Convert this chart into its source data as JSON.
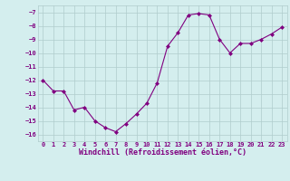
{
  "x": [
    0,
    1,
    2,
    3,
    4,
    5,
    6,
    7,
    8,
    9,
    10,
    11,
    12,
    13,
    14,
    15,
    16,
    17,
    18,
    19,
    20,
    21,
    22,
    23
  ],
  "y": [
    -12.0,
    -12.8,
    -12.8,
    -14.2,
    -14.0,
    -15.0,
    -15.5,
    -15.8,
    -15.2,
    -14.5,
    -13.7,
    -12.2,
    -9.5,
    -8.5,
    -7.2,
    -7.1,
    -7.2,
    -9.0,
    -10.0,
    -9.3,
    -9.3,
    -9.0,
    -8.6,
    -8.1
  ],
  "line_color": "#800080",
  "marker": "D",
  "marker_size": 2.0,
  "line_width": 0.8,
  "background_color": "#d4eeee",
  "grid_color": "#b0cccc",
  "xlabel": "Windchill (Refroidissement éolien,°C)",
  "ylim": [
    -16.5,
    -6.5
  ],
  "xlim": [
    -0.5,
    23.5
  ],
  "yticks": [
    -16,
    -15,
    -14,
    -13,
    -12,
    -11,
    -10,
    -9,
    -8,
    -7
  ],
  "xticks": [
    0,
    1,
    2,
    3,
    4,
    5,
    6,
    7,
    8,
    9,
    10,
    11,
    12,
    13,
    14,
    15,
    16,
    17,
    18,
    19,
    20,
    21,
    22,
    23
  ],
  "tick_color": "#800080",
  "label_color": "#800080",
  "tick_fontsize": 5.0,
  "xlabel_fontsize": 6.0
}
